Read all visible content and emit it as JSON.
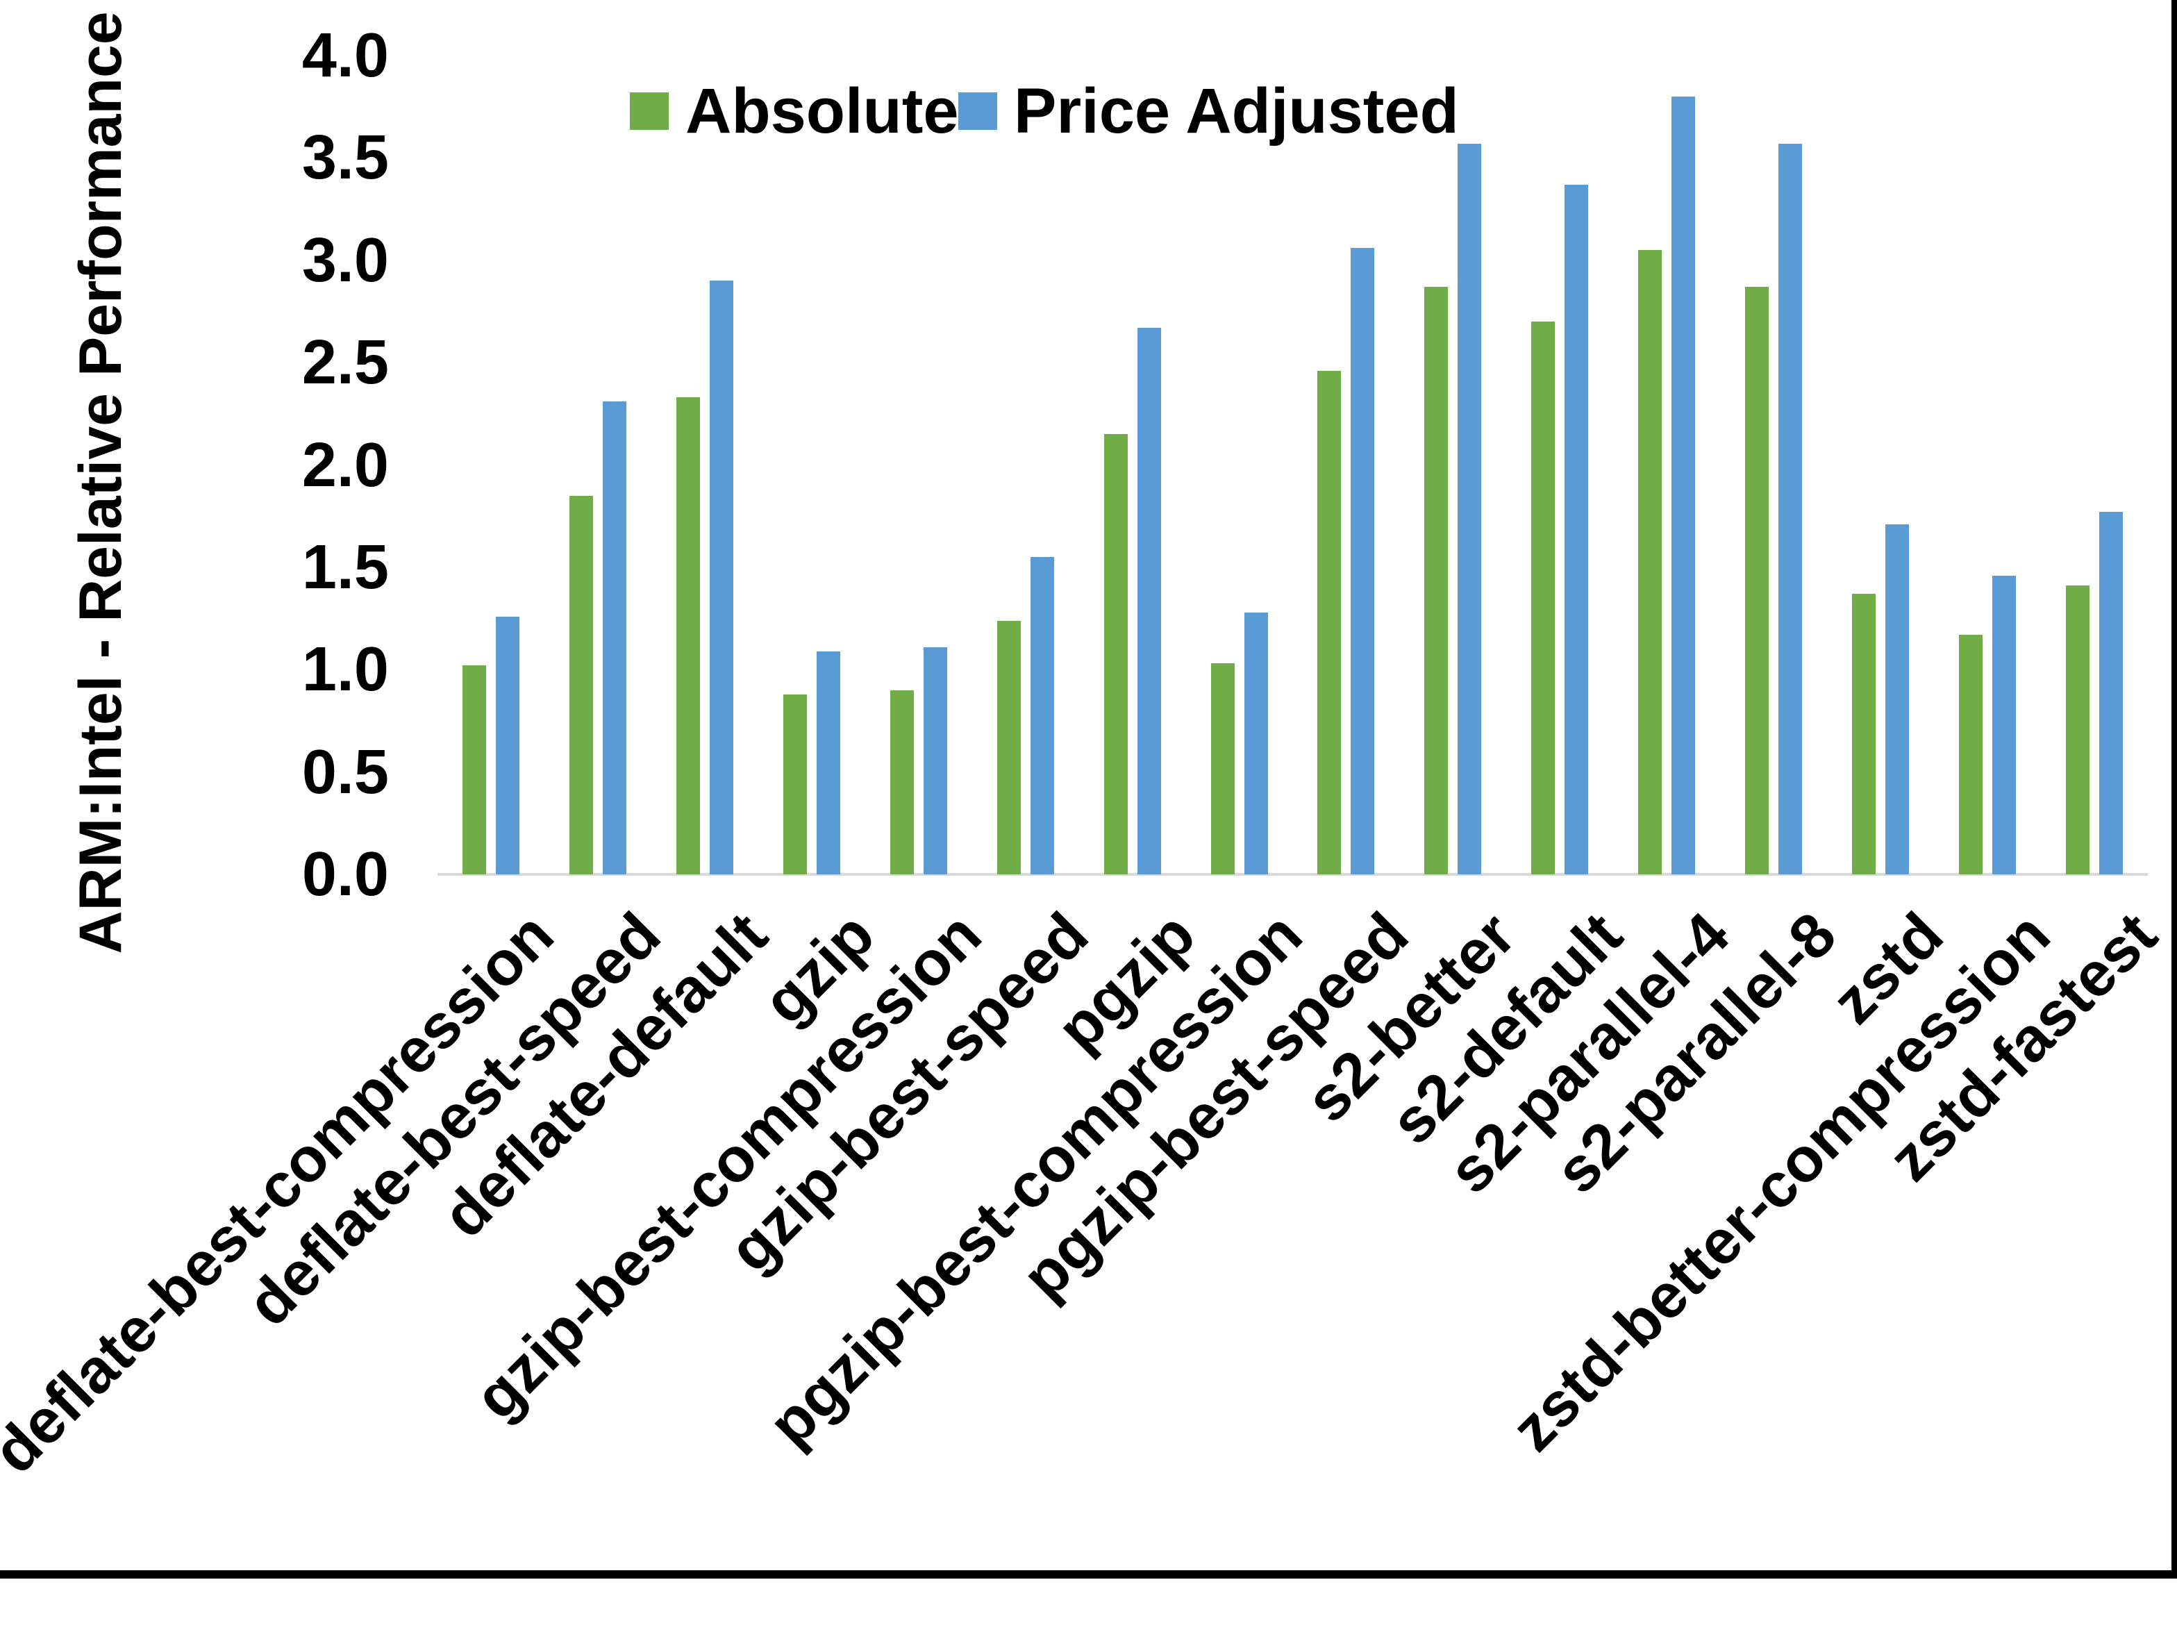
{
  "chart_data": {
    "type": "bar",
    "title": "",
    "xlabel": "",
    "ylabel": "ARM:Intel - Relative Performance",
    "ylim": [
      0,
      4
    ],
    "ytick_labels": [
      "0.0",
      "0.5",
      "1.0",
      "1.5",
      "2.0",
      "2.5",
      "3.0",
      "3.5",
      "4.0"
    ],
    "grid": false,
    "legend_position": "top-center",
    "categories": [
      "deflate-best-compression",
      "deflate-best-speed",
      "deflate-default",
      "gzip",
      "gzip-best-compression",
      "gzip-best-speed",
      "pgzip",
      "pgzip-best-compression",
      "pgzip-best-speed",
      "s2-better",
      "s2-default",
      "s2-parallel-4",
      "s2-parallel-8",
      "zstd",
      "zstd-better-compression",
      "zstd-fastest"
    ],
    "series": [
      {
        "name": "Absolute",
        "color": "#70AD47",
        "values": [
          1.02,
          1.85,
          2.33,
          0.88,
          0.9,
          1.24,
          2.15,
          1.03,
          2.46,
          2.87,
          2.7,
          3.05,
          2.87,
          1.37,
          1.17,
          1.41
        ]
      },
      {
        "name": "Price Adjusted",
        "color": "#5B9BD5",
        "values": [
          1.26,
          2.31,
          2.9,
          1.09,
          1.11,
          1.55,
          2.67,
          1.28,
          3.06,
          3.57,
          3.37,
          3.8,
          3.57,
          1.71,
          1.46,
          1.77
        ]
      }
    ]
  },
  "colors": {
    "background": "#FFFFFF",
    "axis_line": "#D9D9D9",
    "text": "#000000",
    "frame_border": "#000000",
    "series_absolute": "#70AD47",
    "series_price_adjusted": "#5B9BD5"
  }
}
